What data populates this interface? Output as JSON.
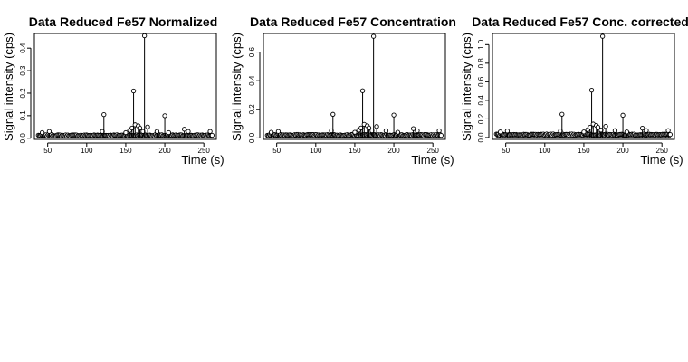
{
  "chart_data": [
    {
      "type": "scatter",
      "title": "Data Reduced Fe57 Normalized",
      "xlabel": "Time (s)",
      "ylabel": "Signal intensity (cps)",
      "xticks": [
        50,
        100,
        150,
        200,
        250
      ],
      "yticks": [
        0.0,
        0.1,
        0.2,
        0.3,
        0.4
      ],
      "ytick_labels": [
        "0.0",
        "0.1",
        "0.2",
        "0.3",
        "0.4"
      ],
      "xlim": [
        33,
        266
      ],
      "ylim": [
        -0.005,
        0.465
      ],
      "grid": false,
      "series": [
        {
          "peaks": [
            {
              "x": 43,
              "y": 0.025
            },
            {
              "x": 52,
              "y": 0.03
            },
            {
              "x": 120,
              "y": 0.03
            },
            {
              "x": 122,
              "y": 0.105
            },
            {
              "x": 150,
              "y": 0.025
            },
            {
              "x": 155,
              "y": 0.035
            },
            {
              "x": 158,
              "y": 0.045
            },
            {
              "x": 160,
              "y": 0.21
            },
            {
              "x": 162,
              "y": 0.06
            },
            {
              "x": 166,
              "y": 0.055
            },
            {
              "x": 168,
              "y": 0.045
            },
            {
              "x": 172,
              "y": 0.03
            },
            {
              "x": 174,
              "y": 0.455
            },
            {
              "x": 178,
              "y": 0.05
            },
            {
              "x": 190,
              "y": 0.03
            },
            {
              "x": 200,
              "y": 0.1
            },
            {
              "x": 205,
              "y": 0.025
            },
            {
              "x": 225,
              "y": 0.04
            },
            {
              "x": 230,
              "y": 0.03
            },
            {
              "x": 258,
              "y": 0.03
            }
          ]
        }
      ]
    },
    {
      "type": "scatter",
      "title": "Data Reduced Fe57 Concentration",
      "xlabel": "Time (s)",
      "ylabel": "Signal intensity (cps)",
      "xticks": [
        50,
        100,
        150,
        200,
        250
      ],
      "yticks": [
        0.0,
        0.2,
        0.4,
        0.6
      ],
      "ytick_labels": [
        "0.0",
        "0.2",
        "0.4",
        "0.6"
      ],
      "xlim": [
        33,
        266
      ],
      "ylim": [
        -0.01,
        0.73
      ],
      "grid": false,
      "series": [
        {
          "peaks": [
            {
              "x": 43,
              "y": 0.04
            },
            {
              "x": 52,
              "y": 0.045
            },
            {
              "x": 120,
              "y": 0.05
            },
            {
              "x": 122,
              "y": 0.165
            },
            {
              "x": 150,
              "y": 0.04
            },
            {
              "x": 155,
              "y": 0.055
            },
            {
              "x": 158,
              "y": 0.07
            },
            {
              "x": 160,
              "y": 0.33
            },
            {
              "x": 162,
              "y": 0.095
            },
            {
              "x": 166,
              "y": 0.085
            },
            {
              "x": 168,
              "y": 0.07
            },
            {
              "x": 172,
              "y": 0.05
            },
            {
              "x": 174,
              "y": 0.71
            },
            {
              "x": 178,
              "y": 0.08
            },
            {
              "x": 190,
              "y": 0.05
            },
            {
              "x": 200,
              "y": 0.16
            },
            {
              "x": 205,
              "y": 0.04
            },
            {
              "x": 225,
              "y": 0.065
            },
            {
              "x": 230,
              "y": 0.05
            },
            {
              "x": 258,
              "y": 0.05
            }
          ]
        }
      ]
    },
    {
      "type": "scatter",
      "title": "Data Reduced Fe57 Conc. corrected",
      "xlabel": "Time (s)",
      "ylabel": "Signal intensity (cps)",
      "xticks": [
        50,
        100,
        150,
        200,
        250
      ],
      "yticks": [
        0.0,
        0.2,
        0.4,
        0.6,
        0.8,
        1.0
      ],
      "ytick_labels": [
        "0.0",
        "0.2",
        "0.4",
        "0.6",
        "0.8",
        "1.0"
      ],
      "xlim": [
        33,
        266
      ],
      "ylim": [
        -0.02,
        1.12
      ],
      "grid": false,
      "series": [
        {
          "peaks": [
            {
              "x": 43,
              "y": 0.06
            },
            {
              "x": 52,
              "y": 0.07
            },
            {
              "x": 120,
              "y": 0.07
            },
            {
              "x": 122,
              "y": 0.25
            },
            {
              "x": 150,
              "y": 0.06
            },
            {
              "x": 155,
              "y": 0.085
            },
            {
              "x": 158,
              "y": 0.11
            },
            {
              "x": 160,
              "y": 0.51
            },
            {
              "x": 162,
              "y": 0.145
            },
            {
              "x": 166,
              "y": 0.13
            },
            {
              "x": 168,
              "y": 0.11
            },
            {
              "x": 172,
              "y": 0.08
            },
            {
              "x": 174,
              "y": 1.09
            },
            {
              "x": 178,
              "y": 0.12
            },
            {
              "x": 190,
              "y": 0.075
            },
            {
              "x": 200,
              "y": 0.24
            },
            {
              "x": 205,
              "y": 0.06
            },
            {
              "x": 225,
              "y": 0.1
            },
            {
              "x": 230,
              "y": 0.075
            },
            {
              "x": 258,
              "y": 0.075
            }
          ]
        }
      ]
    }
  ]
}
